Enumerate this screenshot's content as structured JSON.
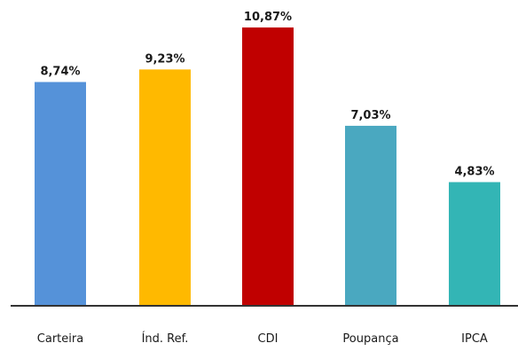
{
  "chart_data": {
    "type": "bar",
    "categories": [
      "Carteira",
      "Índ. Ref.",
      "CDI",
      "Poupança",
      "IPCA"
    ],
    "values": [
      8.74,
      9.23,
      10.87,
      7.03,
      4.83
    ],
    "value_labels": [
      "8,74%",
      "9,23%",
      "10,87%",
      "7,03%",
      "4,83%"
    ],
    "colors": [
      "#5592d9",
      "#ffb900",
      "#c00000",
      "#4aa8c0",
      "#33b5b5"
    ],
    "ylim": [
      0,
      10.87
    ],
    "grid": false,
    "legend": "none"
  }
}
